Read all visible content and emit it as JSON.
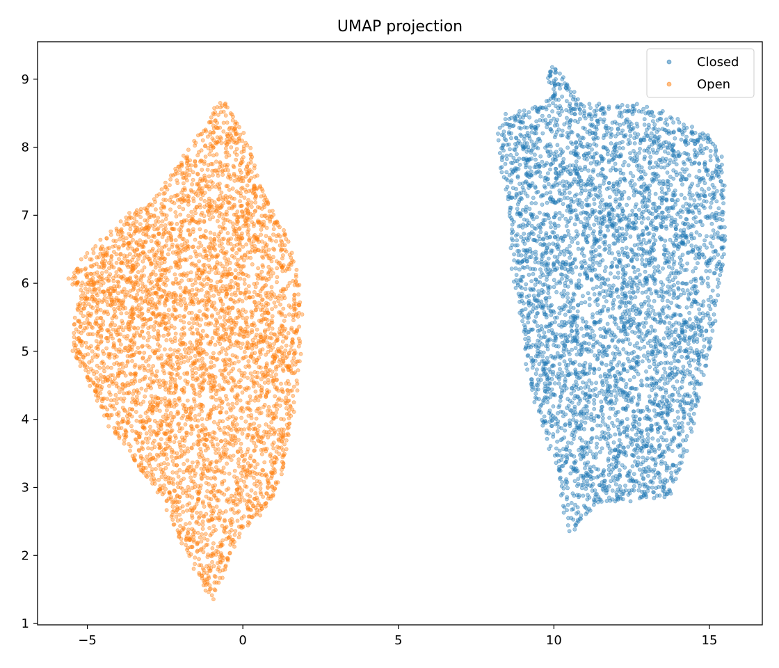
{
  "chart_data": {
    "type": "scatter",
    "title": "UMAP projection",
    "xlabel": "",
    "ylabel": "",
    "xlim": [
      -6.6,
      16.7
    ],
    "ylim": [
      0.98,
      9.55
    ],
    "xticks": [
      -5,
      0,
      5,
      10,
      15
    ],
    "xtick_labels": [
      "−5",
      "0",
      "5",
      "10",
      "15"
    ],
    "yticks": [
      1,
      2,
      3,
      4,
      5,
      6,
      7,
      8,
      9
    ],
    "ytick_labels": [
      "1",
      "2",
      "3",
      "4",
      "5",
      "6",
      "7",
      "8",
      "9"
    ],
    "grid": false,
    "legend_position": "upper right",
    "series": [
      {
        "name": "Closed",
        "color": "#1f77b4",
        "opacity": 0.4,
        "outline": [
          [
            9.9,
            9.15
          ],
          [
            10.1,
            9.12
          ],
          [
            10.5,
            8.9
          ],
          [
            10.8,
            8.65
          ],
          [
            11.5,
            8.6
          ],
          [
            12.5,
            8.62
          ],
          [
            13.2,
            8.55
          ],
          [
            14.2,
            8.35
          ],
          [
            15.0,
            8.15
          ],
          [
            15.35,
            7.9
          ],
          [
            15.45,
            7.4
          ],
          [
            15.5,
            6.6
          ],
          [
            15.35,
            6.0
          ],
          [
            15.1,
            5.3
          ],
          [
            14.9,
            4.8
          ],
          [
            14.6,
            4.2
          ],
          [
            14.3,
            3.7
          ],
          [
            14.0,
            3.2
          ],
          [
            13.7,
            2.9
          ],
          [
            13.0,
            2.85
          ],
          [
            12.0,
            2.82
          ],
          [
            11.3,
            2.75
          ],
          [
            10.9,
            2.55
          ],
          [
            10.55,
            2.38
          ],
          [
            10.3,
            2.7
          ],
          [
            10.1,
            3.4
          ],
          [
            9.7,
            3.8
          ],
          [
            9.3,
            4.4
          ],
          [
            9.1,
            5.0
          ],
          [
            8.95,
            5.6
          ],
          [
            8.7,
            6.2
          ],
          [
            8.6,
            6.8
          ],
          [
            8.5,
            7.4
          ],
          [
            8.3,
            7.7
          ],
          [
            8.25,
            8.2
          ],
          [
            8.5,
            8.45
          ],
          [
            9.2,
            8.55
          ],
          [
            9.7,
            8.6
          ],
          [
            10.0,
            8.8
          ],
          [
            9.85,
            9.05
          ]
        ]
      },
      {
        "name": "Open",
        "color": "#ff7f0e",
        "opacity": 0.4,
        "outline": [
          [
            -0.55,
            8.65
          ],
          [
            -0.2,
            8.35
          ],
          [
            0.2,
            8.0
          ],
          [
            0.6,
            7.4
          ],
          [
            1.0,
            7.0
          ],
          [
            1.4,
            6.7
          ],
          [
            1.7,
            6.2
          ],
          [
            1.85,
            5.7
          ],
          [
            1.85,
            5.0
          ],
          [
            1.7,
            4.4
          ],
          [
            1.5,
            3.9
          ],
          [
            1.3,
            3.3
          ],
          [
            1.0,
            2.9
          ],
          [
            0.5,
            2.6
          ],
          [
            0.0,
            2.4
          ],
          [
            -0.3,
            2.1
          ],
          [
            -0.6,
            1.75
          ],
          [
            -1.0,
            1.38
          ],
          [
            -1.3,
            1.6
          ],
          [
            -1.6,
            1.9
          ],
          [
            -2.1,
            2.3
          ],
          [
            -2.5,
            2.8
          ],
          [
            -3.0,
            3.1
          ],
          [
            -3.4,
            3.3
          ],
          [
            -3.7,
            3.6
          ],
          [
            -4.3,
            3.9
          ],
          [
            -4.8,
            4.4
          ],
          [
            -5.1,
            4.7
          ],
          [
            -5.5,
            5.0
          ],
          [
            -5.4,
            5.5
          ],
          [
            -5.1,
            5.9
          ],
          [
            -5.55,
            6.05
          ],
          [
            -5.0,
            6.45
          ],
          [
            -4.2,
            6.75
          ],
          [
            -3.6,
            7.0
          ],
          [
            -2.9,
            7.2
          ],
          [
            -2.3,
            7.55
          ],
          [
            -1.7,
            8.0
          ],
          [
            -1.1,
            8.35
          ],
          [
            -0.8,
            8.6
          ]
        ]
      }
    ]
  }
}
